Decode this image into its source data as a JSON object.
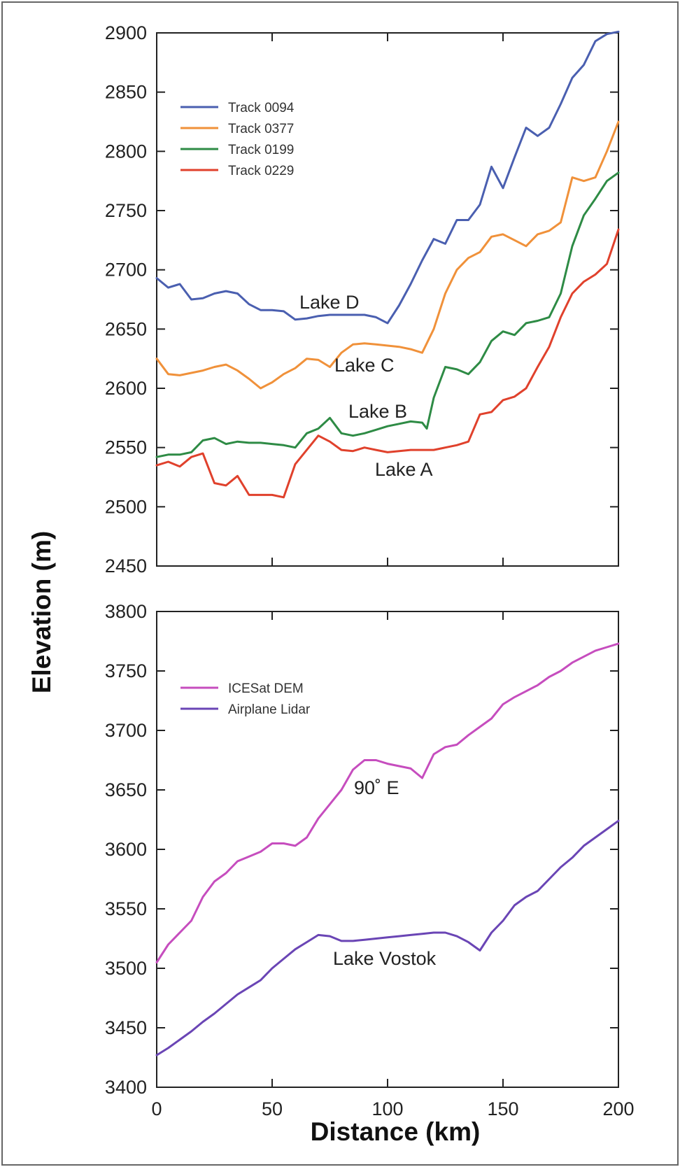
{
  "chart_data": [
    {
      "type": "line",
      "title": "",
      "xlabel": "Distance (km)",
      "ylabel": "Elevation (m)",
      "xlim": [
        0,
        200
      ],
      "ylim": [
        2450,
        2900
      ],
      "xticks": [
        0,
        50,
        100,
        150,
        200
      ],
      "xtick_labels": [],
      "yticks": [
        2450,
        2500,
        2550,
        2600,
        2650,
        2700,
        2750,
        2800,
        2850,
        2900
      ],
      "ytick_labels": [
        "2450",
        "2500",
        "2550",
        "2600",
        "2650",
        "2700",
        "2750",
        "2800",
        "2850",
        "2900"
      ],
      "legend_position": "top-left",
      "grid": false,
      "series": [
        {
          "name": "Track 0094",
          "color": "#4a5fb0",
          "x": [
            0,
            5,
            10,
            15,
            20,
            25,
            30,
            35,
            40,
            45,
            50,
            55,
            60,
            65,
            70,
            75,
            80,
            85,
            90,
            95,
            100,
            105,
            110,
            115,
            120,
            125,
            130,
            135,
            140,
            145,
            150,
            155,
            160,
            165,
            170,
            175,
            180,
            185,
            190,
            195,
            200
          ],
          "y": [
            2693,
            2685,
            2688,
            2675,
            2676,
            2680,
            2682,
            2680,
            2671,
            2666,
            2666,
            2665,
            2658,
            2659,
            2661,
            2662,
            2662,
            2662,
            2662,
            2660,
            2655,
            2670,
            2688,
            2708,
            2726,
            2722,
            2742,
            2742,
            2755,
            2787,
            2769,
            2795,
            2820,
            2813,
            2820,
            2840,
            2862,
            2873,
            2893,
            2899,
            2901
          ]
        },
        {
          "name": "Track 0377",
          "color": "#f0913a",
          "x": [
            0,
            5,
            10,
            15,
            20,
            25,
            30,
            35,
            40,
            45,
            50,
            55,
            60,
            65,
            70,
            75,
            80,
            85,
            90,
            95,
            100,
            105,
            110,
            115,
            120,
            125,
            130,
            135,
            140,
            145,
            150,
            155,
            160,
            165,
            170,
            175,
            180,
            185,
            190,
            195,
            200
          ],
          "y": [
            2625,
            2612,
            2611,
            2613,
            2615,
            2618,
            2620,
            2615,
            2608,
            2600,
            2605,
            2612,
            2617,
            2625,
            2624,
            2618,
            2630,
            2637,
            2638,
            2637,
            2636,
            2635,
            2633,
            2630,
            2650,
            2680,
            2700,
            2710,
            2715,
            2728,
            2730,
            2725,
            2720,
            2730,
            2733,
            2740,
            2778,
            2775,
            2778,
            2800,
            2825
          ]
        },
        {
          "name": "Track 0199",
          "color": "#2e8b45",
          "x": [
            0,
            5,
            10,
            15,
            20,
            25,
            30,
            35,
            40,
            45,
            50,
            55,
            60,
            65,
            70,
            75,
            80,
            85,
            90,
            95,
            100,
            105,
            110,
            115,
            117,
            120,
            125,
            130,
            135,
            140,
            145,
            150,
            155,
            160,
            165,
            170,
            175,
            180,
            185,
            190,
            195,
            200
          ],
          "y": [
            2542,
            2544,
            2544,
            2546,
            2556,
            2558,
            2553,
            2555,
            2554,
            2554,
            2553,
            2552,
            2550,
            2562,
            2566,
            2575,
            2562,
            2560,
            2562,
            2565,
            2568,
            2570,
            2572,
            2571,
            2566,
            2592,
            2618,
            2616,
            2612,
            2622,
            2640,
            2648,
            2645,
            2655,
            2657,
            2660,
            2680,
            2720,
            2746,
            2760,
            2775,
            2782
          ]
        },
        {
          "name": "Track 0229",
          "color": "#e0412c",
          "x": [
            0,
            5,
            10,
            15,
            20,
            25,
            30,
            35,
            40,
            45,
            50,
            55,
            60,
            65,
            70,
            75,
            80,
            85,
            90,
            95,
            100,
            105,
            110,
            115,
            120,
            125,
            130,
            135,
            140,
            145,
            150,
            155,
            160,
            165,
            170,
            175,
            180,
            185,
            190,
            195,
            200
          ],
          "y": [
            2535,
            2538,
            2534,
            2542,
            2545,
            2520,
            2518,
            2526,
            2510,
            2510,
            2510,
            2508,
            2536,
            2548,
            2560,
            2555,
            2548,
            2547,
            2550,
            2548,
            2546,
            2547,
            2548,
            2548,
            2548,
            2550,
            2552,
            2555,
            2578,
            2580,
            2590,
            2593,
            2600,
            2618,
            2635,
            2660,
            2680,
            2690,
            2696,
            2705,
            2734
          ]
        }
      ],
      "annotations": [
        "Lake D",
        "Lake C",
        "Lake B",
        "Lake A"
      ]
    },
    {
      "type": "line",
      "title": "",
      "xlabel": "Distance (km)",
      "ylabel": "Elevation (m)",
      "xlim": [
        0,
        200
      ],
      "ylim": [
        3400,
        3800
      ],
      "xticks": [
        0,
        50,
        100,
        150,
        200
      ],
      "xtick_labels": [
        "0",
        "50",
        "100",
        "150",
        "200"
      ],
      "yticks": [
        3400,
        3450,
        3500,
        3550,
        3600,
        3650,
        3700,
        3750,
        3800
      ],
      "ytick_labels": [
        "3400",
        "3450",
        "3500",
        "3550",
        "3600",
        "3650",
        "3700",
        "3750",
        "3800"
      ],
      "legend_position": "top-left",
      "grid": false,
      "series": [
        {
          "name": "ICESat DEM",
          "color": "#c64dbe",
          "x": [
            0,
            5,
            10,
            15,
            20,
            25,
            30,
            35,
            40,
            45,
            50,
            55,
            60,
            65,
            70,
            75,
            80,
            85,
            90,
            95,
            100,
            105,
            110,
            115,
            120,
            125,
            130,
            135,
            140,
            145,
            150,
            155,
            160,
            165,
            170,
            175,
            180,
            185,
            190,
            195,
            200
          ],
          "y": [
            3505,
            3520,
            3530,
            3540,
            3560,
            3573,
            3580,
            3590,
            3594,
            3598,
            3605,
            3605,
            3603,
            3610,
            3626,
            3638,
            3650,
            3667,
            3675,
            3675,
            3672,
            3670,
            3668,
            3660,
            3680,
            3686,
            3688,
            3696,
            3703,
            3710,
            3722,
            3728,
            3733,
            3738,
            3745,
            3750,
            3757,
            3762,
            3767,
            3770,
            3773
          ]
        },
        {
          "name": "Airplane Lidar",
          "color": "#6a45b5",
          "x": [
            0,
            5,
            10,
            15,
            20,
            25,
            30,
            35,
            40,
            45,
            50,
            55,
            60,
            65,
            70,
            75,
            80,
            85,
            90,
            95,
            100,
            105,
            110,
            115,
            120,
            125,
            130,
            135,
            140,
            145,
            150,
            155,
            160,
            165,
            170,
            175,
            180,
            185,
            190,
            195,
            200
          ],
          "y": [
            3427,
            3433,
            3440,
            3447,
            3455,
            3462,
            3470,
            3478,
            3484,
            3490,
            3500,
            3508,
            3516,
            3522,
            3528,
            3527,
            3523,
            3523,
            3524,
            3525,
            3526,
            3527,
            3528,
            3529,
            3530,
            3530,
            3527,
            3522,
            3515,
            3530,
            3540,
            3553,
            3560,
            3565,
            3575,
            3585,
            3593,
            3603,
            3610,
            3617,
            3624
          ]
        }
      ],
      "annotations": [
        "90˚ E",
        "Lake Vostok"
      ]
    }
  ]
}
